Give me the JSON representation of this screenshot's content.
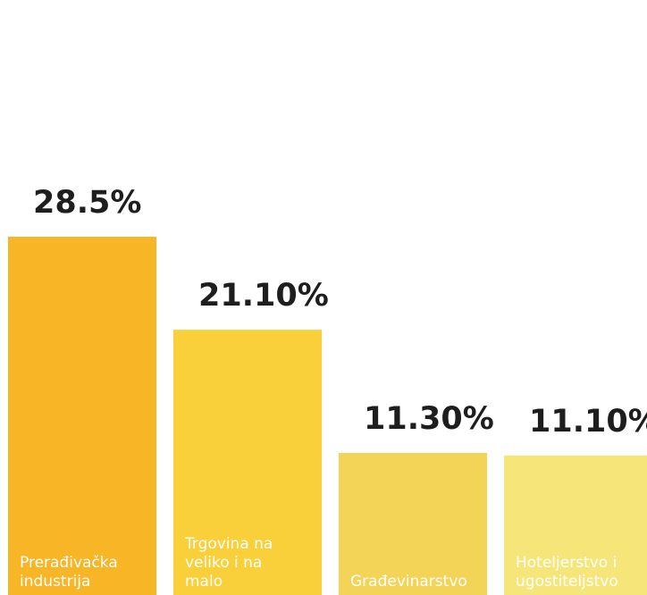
{
  "chart_data": {
    "type": "bar",
    "categories": [
      [
        "Prerađivačka",
        "industrija"
      ],
      [
        "Trgovina na",
        "veliko i na",
        "malo"
      ],
      [
        "Građevinarstvo"
      ],
      [
        "Hoteljerstvo i",
        "ugostiteljstvo"
      ]
    ],
    "values": [
      28.5,
      21.1,
      11.3,
      11.1
    ],
    "value_labels": [
      "28.5%",
      "21.10%",
      "11.30%",
      "11.10%"
    ],
    "colors": [
      "#f8b526",
      "#f9cf3a",
      "#f3d457",
      "#f6e67a"
    ],
    "ylim": [
      0,
      28.5
    ],
    "grid": false,
    "legend": "none"
  }
}
